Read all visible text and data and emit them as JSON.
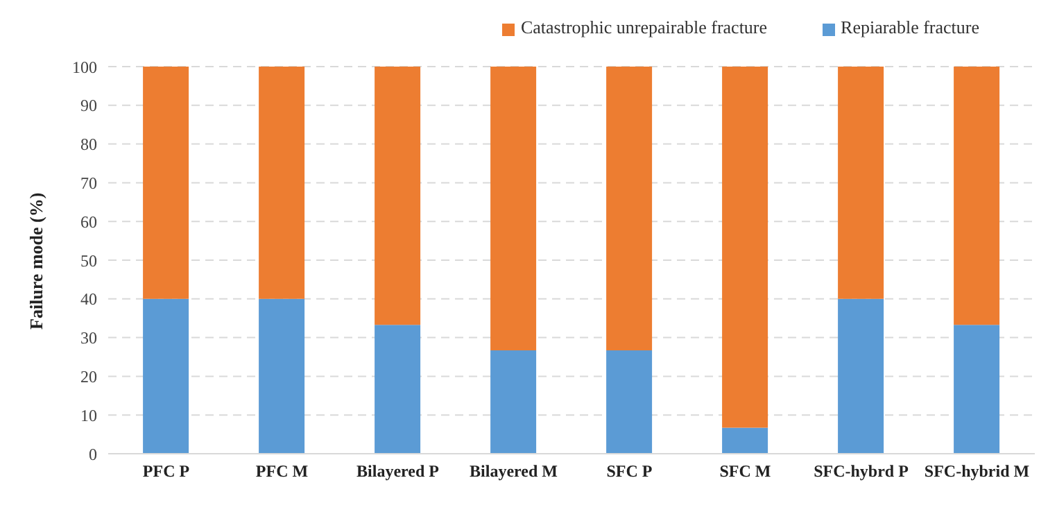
{
  "chart_data": {
    "type": "bar",
    "ylabel": "Failure mode (%)",
    "categories": [
      "PFC P",
      "PFC M",
      "Bilayered P",
      "Bilayered M",
      "SFC P",
      "SFC M",
      "SFC-hybrd P",
      "SFC-hybrid M"
    ],
    "series": [
      {
        "name": "Repiarable fracture",
        "color": "#5b9bd5",
        "values": [
          40,
          40,
          33.3,
          26.7,
          26.7,
          6.7,
          40,
          33.3
        ]
      },
      {
        "name": "Catastrophic unrepairable fracture",
        "color": "#ed7d31",
        "values": [
          60,
          60,
          66.7,
          73.3,
          73.3,
          93.3,
          60,
          66.7
        ]
      }
    ],
    "stacked": true,
    "ylim": [
      0,
      100
    ],
    "yticks": [
      0,
      10,
      20,
      30,
      40,
      50,
      60,
      70,
      80,
      90,
      100
    ],
    "grid": "y",
    "legend": "top right"
  }
}
